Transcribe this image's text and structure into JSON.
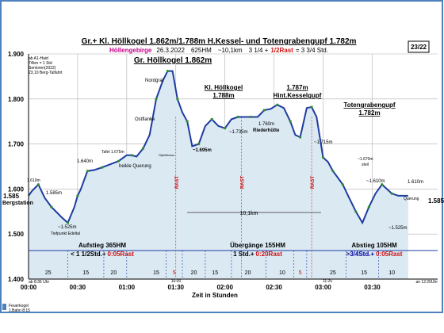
{
  "chart_data": {
    "type": "area",
    "title": "Gr.+ Kl. Höllkogel 1.862m/1.788m H.Kessel- und Totengrabengupf 1.782m",
    "subtitle": {
      "region": "Höllengebirge",
      "date": "26.3.2022",
      "ascent": "625HM",
      "distance": "~10,1km",
      "time_part1": "3 1/4 +",
      "time_part2": "1/2Rast",
      "time_part3": "= 3 3/4 Std."
    },
    "page_label": "23/22",
    "xlabel": "Zeit in Stunden",
    "ylabel": "",
    "ylim": [
      1.4,
      1.9
    ],
    "xlim": [
      0,
      250
    ],
    "y_ticks": [
      "1.900",
      "1.800",
      "1.700",
      "1.600",
      "1.500",
      "1.400"
    ],
    "y_tick_values": [
      1.9,
      1.8,
      1.7,
      1.6,
      1.5,
      1.4
    ],
    "x_ticks": [
      "00:00",
      "00:30",
      "01:00",
      "01:30",
      "02:00",
      "02:30",
      "03:00",
      "03:30"
    ],
    "x_tick_values": [
      0,
      30,
      60,
      90,
      120,
      150,
      180,
      210
    ],
    "grid": true,
    "series": [
      {
        "x": [
          0,
          2,
          6,
          10,
          14,
          20,
          24,
          28,
          30,
          32,
          36,
          40,
          45,
          50,
          55,
          60,
          63,
          66,
          70,
          74,
          78,
          82,
          85,
          88,
          91,
          94,
          97,
          100,
          104,
          108,
          112,
          116,
          120,
          124,
          128,
          132,
          136,
          140,
          144,
          148,
          152,
          156,
          160,
          163,
          166,
          170,
          173,
          176,
          180,
          183,
          186,
          190,
          192,
          196,
          200,
          204,
          208,
          212,
          216,
          219,
          222,
          226,
          232
        ],
        "values": [
          1.585,
          1.595,
          1.61,
          1.58,
          1.56,
          1.538,
          1.525,
          1.56,
          1.585,
          1.6,
          1.64,
          1.642,
          1.648,
          1.655,
          1.662,
          1.675,
          1.675,
          1.672,
          1.69,
          1.72,
          1.8,
          1.84,
          1.862,
          1.862,
          1.8,
          1.77,
          1.75,
          1.695,
          1.7,
          1.74,
          1.755,
          1.74,
          1.735,
          1.755,
          1.76,
          1.76,
          1.76,
          1.76,
          1.775,
          1.778,
          1.787,
          1.78,
          1.75,
          1.72,
          1.715,
          1.78,
          1.782,
          1.76,
          1.67,
          1.66,
          1.64,
          1.62,
          1.61,
          1.58,
          1.55,
          1.525,
          1.56,
          1.59,
          1.61,
          1.6,
          1.59,
          1.585,
          1.585
        ]
      }
    ],
    "segments": [
      {
        "label": "Aufstieg 365HM",
        "detail_a": "< 1 1/2Std.+",
        "detail_b": "0:05Rast"
      },
      {
        "label": "Übergänge 155HM",
        "detail_a": "1 Std.+",
        "detail_b": "0:20Rast"
      },
      {
        "label": "Abstieg 105HM",
        "detail_a": ">3/4Std.+",
        "detail_b": "0:05Rast"
      }
    ],
    "duration_labels": [
      "25",
      "15",
      "20",
      "15",
      "5",
      "20",
      "15",
      "20",
      "10",
      "5",
      "25",
      "15",
      "10"
    ],
    "rast_label": "RAST",
    "annotations": {
      "peak_main": "Gr. Höllkogel 1.862m",
      "nordgrat": "Nordgrat",
      "ostflanke": "Ostflanke",
      "kl_hoellkogel": "Kl. Höllkogel",
      "kl_hoellkogel_alt": "1.788m",
      "hint_kessel_alt": "1.787m",
      "hint_kessel": "Hint.Kesselgupf",
      "totengraben": "Totengrabengupf",
      "totengraben_alt": "1.782m",
      "bergstation": "Bergstation",
      "start_alt": "1.585",
      "end_alt": "1.585m",
      "alt_1610_left": "1.610m",
      "alt_1585_orange": "1.585m",
      "alt_1525": "~1.525m",
      "tiefpunkt": "Tiefpunkt Edeltal",
      "alt_1640": "1.640m",
      "tafel": "Tafel 1.675m",
      "querung": "heikle Querung",
      "alt_1695": "~1.695m",
      "alt_1735": "~1.735m",
      "alt_1760": "1.760m",
      "riederhuette": "Riederhütte",
      "alt_1715": "~1.715m",
      "alt_1670": "~1.670m",
      "steil": "steil",
      "alt_1610_orange": "~1.610m",
      "alt_1525_right": "~1.525m",
      "alt_1610_right": "1.610m",
      "querung_right": "Querung",
      "distance_label": "10,1km",
      "time_10": "10:00",
      "time_1125": "11:25",
      "start_note": "ab 8:35 Uhr",
      "end_note": "an 12:20Uhr",
      "info_1": "ab A1-Haid",
      "info_2": "74km = 1 Std",
      "info_3": "Senioren(2022)",
      "info_4": "23,10 Berg-Talfahrt",
      "legend_1": "Feuerkogel",
      "legend_2": "1.Bahn 8:15",
      "tafel_icon_label": "Gipfelkreuz"
    }
  },
  "colors": {
    "frame": "#4f81bd",
    "area": "#dbe9f3",
    "line": "#1f3ca0",
    "marker": "#2e8b2e",
    "orange": "#e07b00",
    "red": "#d01010",
    "navy": "#0000a0"
  }
}
